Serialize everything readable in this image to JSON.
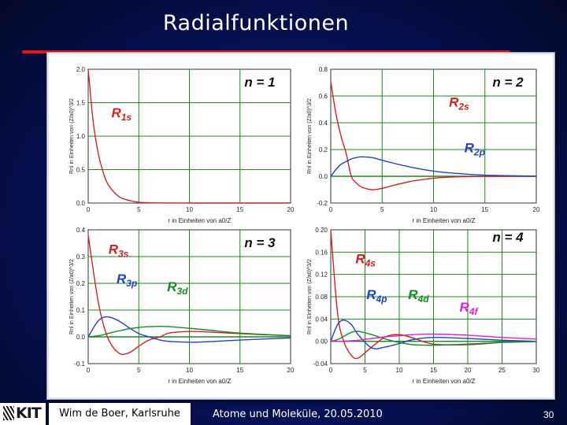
{
  "slide": {
    "title": "Radialfunktionen",
    "author": "Wim de Boer, Karlsruhe",
    "lecture_date": "Atome und Moleküle,  20.05.2010",
    "page_number": "30",
    "logo_text": "KIT",
    "colors": {
      "background": "#07135f",
      "rule": "#e01818",
      "panel": "#ffffff"
    }
  },
  "chart_data": [
    {
      "type": "line",
      "panel_label": "n = 1",
      "xlabel": "r in Einheiten von a0/Z",
      "ylabel": "Rnl in Einheiten von (Z/a0)^3/2",
      "xlim": [
        0,
        20
      ],
      "ylim": [
        0,
        2.0
      ],
      "xticks": [
        0,
        5,
        10,
        15,
        20
      ],
      "yticks": [
        0,
        0.5,
        1.0,
        1.5,
        2.0
      ],
      "ytick_labels": [
        "0.0",
        "0.5",
        "1.0",
        "1.5",
        "2.0"
      ],
      "grid": true,
      "x": [
        0,
        0.5,
        1,
        1.5,
        2,
        3,
        4,
        5,
        6,
        8,
        10,
        15,
        20
      ],
      "series": [
        {
          "name": "R1s",
          "color": "#d42020",
          "label_x": 2.3,
          "label_y": 1.28,
          "values": [
            2.0,
            1.21,
            0.74,
            0.45,
            0.27,
            0.1,
            0.04,
            0.013,
            0.005,
            0.0007,
            0.0001,
            0.0,
            0.0
          ]
        }
      ]
    },
    {
      "type": "line",
      "panel_label": "n = 2",
      "xlabel": "r in Einheiten von a0/Z",
      "ylabel": "Rnl in Einheiten von (Z/a0)^3/2",
      "xlim": [
        0,
        20
      ],
      "ylim": [
        -0.2,
        0.8
      ],
      "xticks": [
        0,
        5,
        10,
        15,
        20
      ],
      "yticks": [
        -0.2,
        0.0,
        0.2,
        0.4,
        0.6,
        0.8
      ],
      "ytick_labels": [
        "-0.2",
        "0.0",
        "0.2",
        "0.4",
        "0.6",
        "0.8"
      ],
      "grid": true,
      "x": [
        0,
        0.5,
        1,
        1.5,
        2,
        2.5,
        3,
        4,
        5,
        6,
        8,
        10,
        12,
        15,
        20
      ],
      "series": [
        {
          "name": "R2s",
          "color": "#d42020",
          "label_x": 11.5,
          "label_y": 0.52,
          "values": [
            0.71,
            0.47,
            0.3,
            0.17,
            0.0,
            -0.05,
            -0.08,
            -0.1,
            -0.09,
            -0.07,
            -0.035,
            -0.014,
            -0.005,
            -0.001,
            0.0
          ]
        },
        {
          "name": "R2p",
          "color": "#2040c8",
          "label_x": 13.0,
          "label_y": 0.18,
          "values": [
            0.0,
            0.05,
            0.09,
            0.11,
            0.13,
            0.14,
            0.145,
            0.14,
            0.12,
            0.1,
            0.065,
            0.039,
            0.023,
            0.008,
            0.001
          ]
        }
      ]
    },
    {
      "type": "line",
      "panel_label": "n = 3",
      "xlabel": "r in Einheiten von a0/Z",
      "ylabel": "Rnl in Einheiten von (Z/a0)^3/2",
      "xlim": [
        0,
        20
      ],
      "ylim": [
        -0.1,
        0.4
      ],
      "xticks": [
        0,
        5,
        10,
        15,
        20
      ],
      "yticks": [
        -0.1,
        0.0,
        0.1,
        0.2,
        0.3,
        0.4
      ],
      "ytick_labels": [
        "-0.1",
        "0.0",
        "0.1",
        "0.2",
        "0.3",
        "0.4"
      ],
      "grid": true,
      "x": [
        0,
        1,
        1.9,
        3,
        4,
        5,
        6,
        7.1,
        8,
        10,
        12,
        15,
        20
      ],
      "series": [
        {
          "name": "R3s",
          "color": "#d42020",
          "label_x": 2.0,
          "label_y": 0.31,
          "values": [
            0.38,
            0.13,
            0.0,
            -0.06,
            -0.06,
            -0.035,
            -0.012,
            0.0,
            0.014,
            0.02,
            0.018,
            0.012,
            0.004
          ]
        },
        {
          "name": "R3p",
          "color": "#2040c8",
          "label_x": 2.8,
          "label_y": 0.2,
          "values": [
            0.0,
            0.06,
            0.075,
            0.06,
            0.035,
            0.012,
            0.0,
            -0.012,
            -0.017,
            -0.02,
            -0.018,
            -0.012,
            -0.004
          ]
        },
        {
          "name": "R3d",
          "color": "#108a28",
          "label_x": 7.8,
          "label_y": 0.17,
          "values": [
            0.0,
            0.004,
            0.012,
            0.022,
            0.03,
            0.035,
            0.038,
            0.039,
            0.038,
            0.032,
            0.025,
            0.014,
            0.004
          ]
        }
      ]
    },
    {
      "type": "line",
      "panel_label": "n = 4",
      "xlabel": "r in Einheiten von a0/Z",
      "ylabel": "Rnl in Einheiten von (Z/a0)^3/2",
      "xlim": [
        0,
        30
      ],
      "ylim": [
        -0.04,
        0.2
      ],
      "xticks": [
        0,
        5,
        10,
        15,
        20,
        25,
        30
      ],
      "yticks": [
        -0.04,
        0.0,
        0.04,
        0.08,
        0.12,
        0.16,
        0.2
      ],
      "ytick_labels": [
        "-0.04",
        "0.00",
        "0.04",
        "0.08",
        "0.12",
        "0.16",
        "0.20"
      ],
      "grid": true,
      "x": [
        0,
        1,
        1.9,
        3,
        4,
        6,
        8,
        10,
        12,
        15,
        20,
        25,
        30
      ],
      "series": [
        {
          "name": "R4s",
          "color": "#d42020",
          "label_x": 3.6,
          "label_y": 0.14,
          "values": [
            0.2,
            0.05,
            0.0,
            -0.025,
            -0.03,
            -0.01,
            0.008,
            0.012,
            0.006,
            -0.005,
            -0.006,
            -0.002,
            0.0
          ]
        },
        {
          "name": "R4p",
          "color": "#2040c8",
          "label_x": 5.2,
          "label_y": 0.076,
          "values": [
            0.0,
            0.03,
            0.038,
            0.03,
            0.012,
            -0.012,
            -0.01,
            -0.004,
            0.003,
            0.007,
            0.005,
            0.002,
            0.0
          ]
        },
        {
          "name": "R4d",
          "color": "#108a28",
          "label_x": 11.3,
          "label_y": 0.076,
          "values": [
            0.0,
            0.003,
            0.009,
            0.016,
            0.018,
            0.012,
            0.004,
            -0.002,
            -0.006,
            -0.007,
            -0.005,
            -0.002,
            -0.0005
          ]
        },
        {
          "name": "R4f",
          "color": "#e020d0",
          "label_x": 18.8,
          "label_y": 0.053,
          "values": [
            0.0,
            0.0,
            0.0003,
            0.001,
            0.002,
            0.005,
            0.008,
            0.01,
            0.012,
            0.013,
            0.011,
            0.007,
            0.004
          ]
        }
      ]
    }
  ]
}
